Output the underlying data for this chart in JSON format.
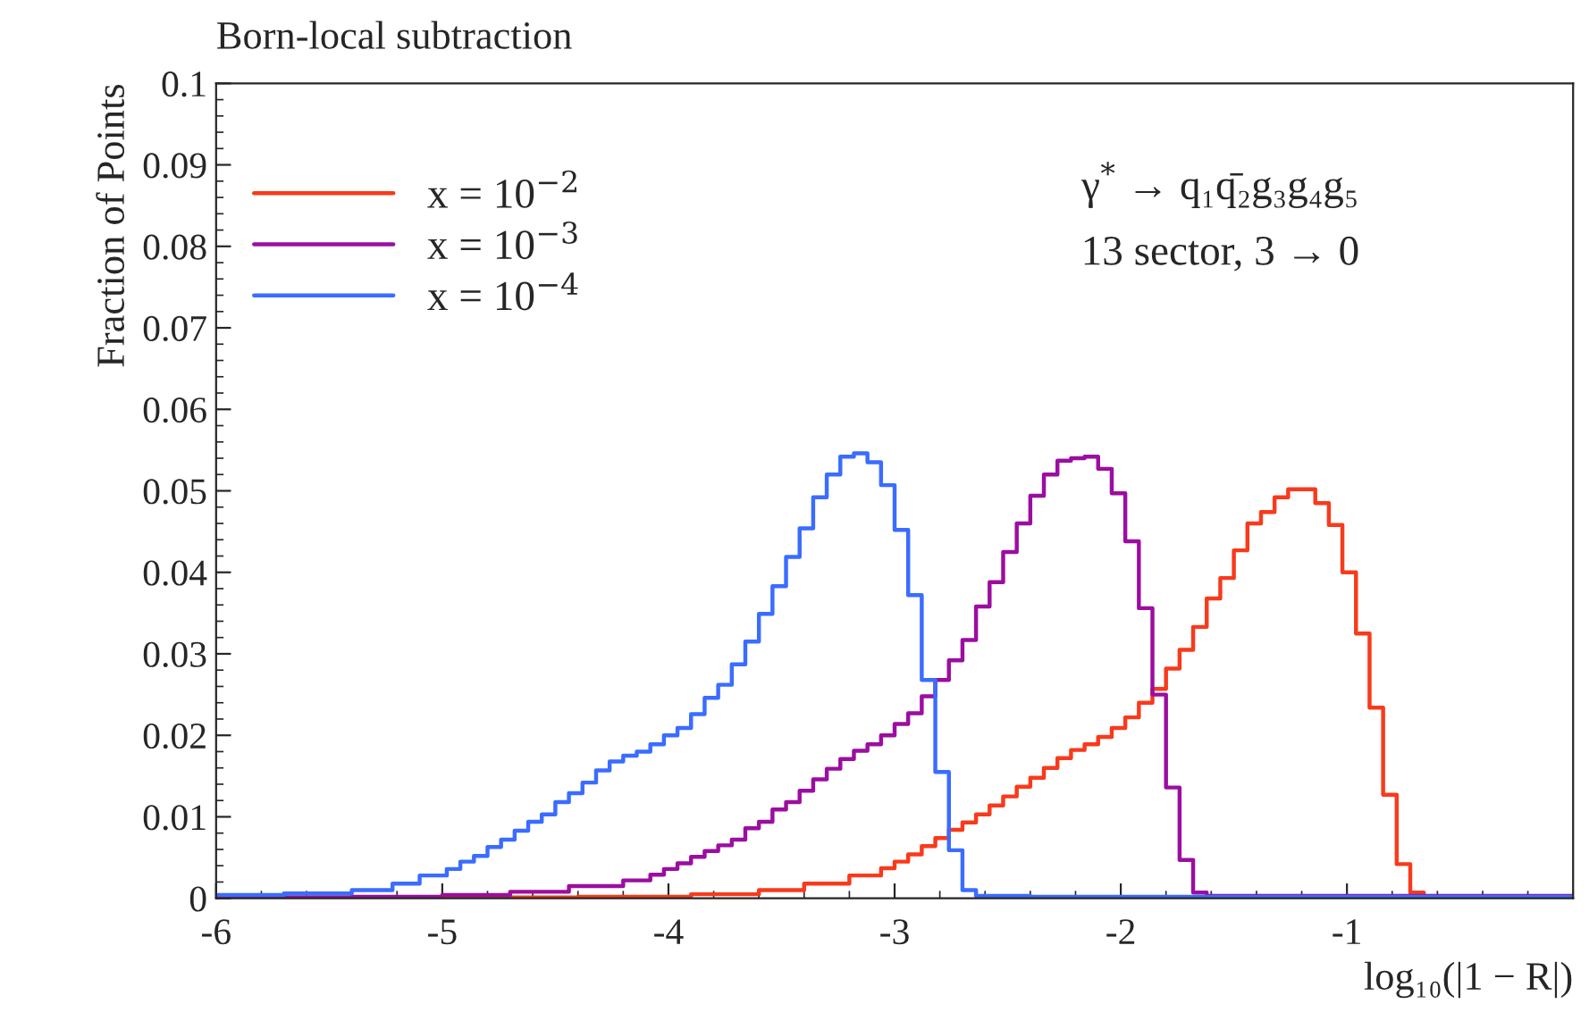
{
  "chart_data": {
    "type": "step",
    "title": "Born-local subtraction",
    "xlabel": "log₁₀(|1 − R|)",
    "ylabel": "Fraction of Points",
    "annotations": [
      "γ$^{*}$ → q₁q̄₂g₃g₄g₅",
      "13 sector, 3 → 0"
    ],
    "xlim": [
      -6,
      0
    ],
    "xticks": [
      {
        "value": -6,
        "label": "-6"
      },
      {
        "value": -5,
        "label": "-5"
      },
      {
        "value": -4,
        "label": "-4"
      },
      {
        "value": -3,
        "label": "-3"
      },
      {
        "value": -2,
        "label": "-2"
      },
      {
        "value": -1,
        "label": "-1"
      }
    ],
    "ylim": [
      0,
      0.1
    ],
    "yticks": [
      0,
      0.01,
      0.02,
      0.03,
      0.04,
      0.05,
      0.06,
      0.07,
      0.08,
      0.09,
      0.1
    ],
    "legend": "top left",
    "grid": false,
    "marker": "none",
    "line_style": "solid",
    "series": [
      {
        "name": "x = 10$^{−2}$",
        "color": "#f83a1c",
        "x": [
          -6,
          -4.4,
          -3.9,
          -3.6,
          -3.4,
          -3.2,
          -3.06,
          -3.0,
          -2.94,
          -2.88,
          -2.82,
          -2.76,
          -2.7,
          -2.64,
          -2.58,
          -2.52,
          -2.46,
          -2.4,
          -2.34,
          -2.28,
          -2.22,
          -2.16,
          -2.1,
          -2.04,
          -1.98,
          -1.92,
          -1.86,
          -1.8,
          -1.74,
          -1.68,
          -1.62,
          -1.56,
          -1.5,
          -1.44,
          -1.38,
          -1.32,
          -1.26,
          -1.2,
          -1.14,
          -1.08,
          -1.02,
          -0.96,
          -0.9,
          -0.84,
          -0.78,
          -0.72,
          -0.66
        ],
        "values": [
          0.0001,
          0.0002,
          0.0005,
          0.001,
          0.0018,
          0.0028,
          0.0037,
          0.0045,
          0.0054,
          0.0064,
          0.0074,
          0.0084,
          0.0093,
          0.0103,
          0.0114,
          0.0125,
          0.0137,
          0.0148,
          0.016,
          0.0172,
          0.0182,
          0.0189,
          0.0198,
          0.0209,
          0.0222,
          0.024,
          0.0257,
          0.0282,
          0.0305,
          0.0333,
          0.0368,
          0.0393,
          0.0427,
          0.046,
          0.0474,
          0.0492,
          0.0502,
          0.0502,
          0.0485,
          0.0458,
          0.04,
          0.0325,
          0.0234,
          0.0127,
          0.0042,
          0.0007,
          0.0001
        ]
      },
      {
        "name": "x = 10$^{−3}$",
        "color": "#9b0ea0",
        "x": [
          -6,
          -5.4,
          -5.0,
          -4.7,
          -4.44,
          -4.2,
          -4.08,
          -4.02,
          -3.96,
          -3.9,
          -3.84,
          -3.78,
          -3.72,
          -3.66,
          -3.6,
          -3.54,
          -3.48,
          -3.42,
          -3.36,
          -3.3,
          -3.24,
          -3.18,
          -3.12,
          -3.06,
          -3.0,
          -2.94,
          -2.88,
          -2.82,
          -2.76,
          -2.7,
          -2.64,
          -2.58,
          -2.52,
          -2.46,
          -2.4,
          -2.34,
          -2.28,
          -2.22,
          -2.16,
          -2.1,
          -2.04,
          -1.98,
          -1.92,
          -1.86,
          -1.8,
          -1.74,
          -1.68,
          -1.62,
          0
        ],
        "values": [
          0.0001,
          0.0002,
          0.0004,
          0.0008,
          0.0015,
          0.0022,
          0.0029,
          0.0036,
          0.0043,
          0.0051,
          0.0058,
          0.0065,
          0.0072,
          0.0086,
          0.0094,
          0.0109,
          0.0118,
          0.0132,
          0.0146,
          0.0159,
          0.0171,
          0.0181,
          0.0189,
          0.02,
          0.0214,
          0.0227,
          0.0248,
          0.0268,
          0.0292,
          0.0317,
          0.0358,
          0.0388,
          0.0425,
          0.046,
          0.0494,
          0.052,
          0.0537,
          0.054,
          0.0542,
          0.0527,
          0.0497,
          0.0438,
          0.0356,
          0.025,
          0.0136,
          0.0047,
          0.0007,
          0.0003,
          0.0003
        ]
      },
      {
        "name": "x = 10$^{−4}$",
        "color": "#3a6cff",
        "x": [
          -6,
          -5.7,
          -5.4,
          -5.22,
          -5.1,
          -4.98,
          -4.92,
          -4.86,
          -4.8,
          -4.74,
          -4.68,
          -4.62,
          -4.56,
          -4.5,
          -4.44,
          -4.38,
          -4.32,
          -4.26,
          -4.2,
          -4.14,
          -4.08,
          -4.02,
          -3.96,
          -3.9,
          -3.84,
          -3.78,
          -3.72,
          -3.66,
          -3.6,
          -3.54,
          -3.48,
          -3.42,
          -3.36,
          -3.3,
          -3.24,
          -3.18,
          -3.12,
          -3.06,
          -3.0,
          -2.94,
          -2.88,
          -2.82,
          -2.76,
          -2.7,
          -2.64,
          -2.4,
          0
        ],
        "values": [
          0.0004,
          0.0006,
          0.001,
          0.0018,
          0.0028,
          0.0036,
          0.0045,
          0.0052,
          0.0063,
          0.0072,
          0.0083,
          0.0094,
          0.0103,
          0.0118,
          0.0129,
          0.0142,
          0.0157,
          0.0168,
          0.0175,
          0.018,
          0.0189,
          0.02,
          0.0209,
          0.0226,
          0.0246,
          0.0262,
          0.0287,
          0.0315,
          0.0349,
          0.0383,
          0.0419,
          0.0454,
          0.0492,
          0.052,
          0.0542,
          0.0546,
          0.0535,
          0.0507,
          0.0452,
          0.0372,
          0.0268,
          0.0155,
          0.0059,
          0.001,
          0.0003,
          0.0002,
          0.0002
        ]
      }
    ]
  }
}
